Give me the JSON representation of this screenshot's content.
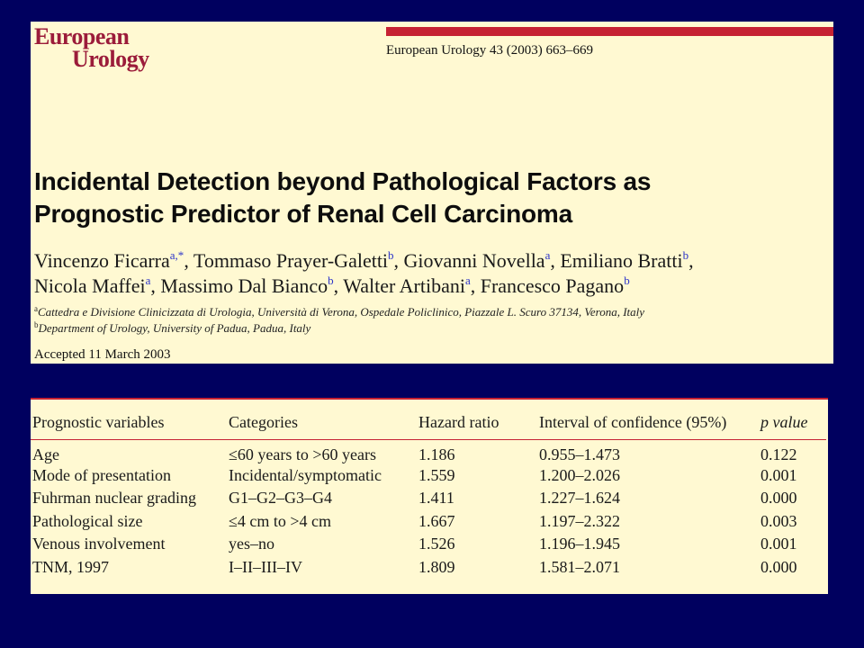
{
  "journal": {
    "logo_line1": "European",
    "logo_line2": "Urology",
    "citation": "European Urology 43 (2003) 663–669"
  },
  "article": {
    "title_line1": "Incidental Detection beyond Pathological Factors as",
    "title_line2": "Prognostic Predictor of Renal Cell Carcinoma",
    "authors": [
      {
        "name": "Vincenzo Ficarra",
        "sup": "a,*",
        "sep": ", "
      },
      {
        "name": "Tommaso Prayer-Galetti",
        "sup": "b",
        "sep": ", "
      },
      {
        "name": "Giovanni Novella",
        "sup": "a",
        "sep": ", "
      },
      {
        "name": "Emiliano Bratti",
        "sup": "b",
        "sep": ","
      },
      {
        "name": "Nicola Maffei",
        "sup": "a",
        "sep": ", "
      },
      {
        "name": "Massimo Dal Bianco",
        "sup": "b",
        "sep": ", "
      },
      {
        "name": "Walter Artibani",
        "sup": "a",
        "sep": ", "
      },
      {
        "name": "Francesco Pagano",
        "sup": "b",
        "sep": ""
      }
    ],
    "affiliations": [
      {
        "sup": "a",
        "text": "Cattedra e Divisione Clinicizzata di Urologia, Università di Verona, Ospedale Policlinico, Piazzale L. Scuro 37134, Verona, Italy"
      },
      {
        "sup": "b",
        "text": "Department of Urology, University of Padua, Padua, Italy"
      }
    ],
    "accepted": "Accepted 11 March 2003"
  },
  "table": {
    "headers": [
      "Prognostic variables",
      "Categories",
      "Hazard ratio",
      "Interval of confidence (95%)",
      "p value"
    ],
    "rows": [
      [
        "Age",
        "≤60 years to >60 years",
        "1.186",
        "0.955–1.473",
        "0.122"
      ],
      [
        "Mode of presentation",
        "Incidental/symptomatic",
        "1.559",
        "1.200–2.026",
        "0.001"
      ],
      [
        "Fuhrman nuclear grading",
        "G1–G2–G3–G4",
        "1.411",
        "1.227–1.624",
        "0.000"
      ],
      [
        "Pathological size",
        "≤4 cm to >4 cm",
        "1.667",
        "1.197–2.322",
        "0.003"
      ],
      [
        "Venous involvement",
        "yes–no",
        "1.526",
        "1.196–1.945",
        "0.001"
      ],
      [
        "TNM, 1997",
        "I–II–III–IV",
        "1.809",
        "1.581–2.071",
        "0.000"
      ]
    ]
  },
  "colors": {
    "background": "#00005f",
    "panel": "#fff9d2",
    "accent_red": "#c62233",
    "superscript_blue": "#2b33c9"
  }
}
